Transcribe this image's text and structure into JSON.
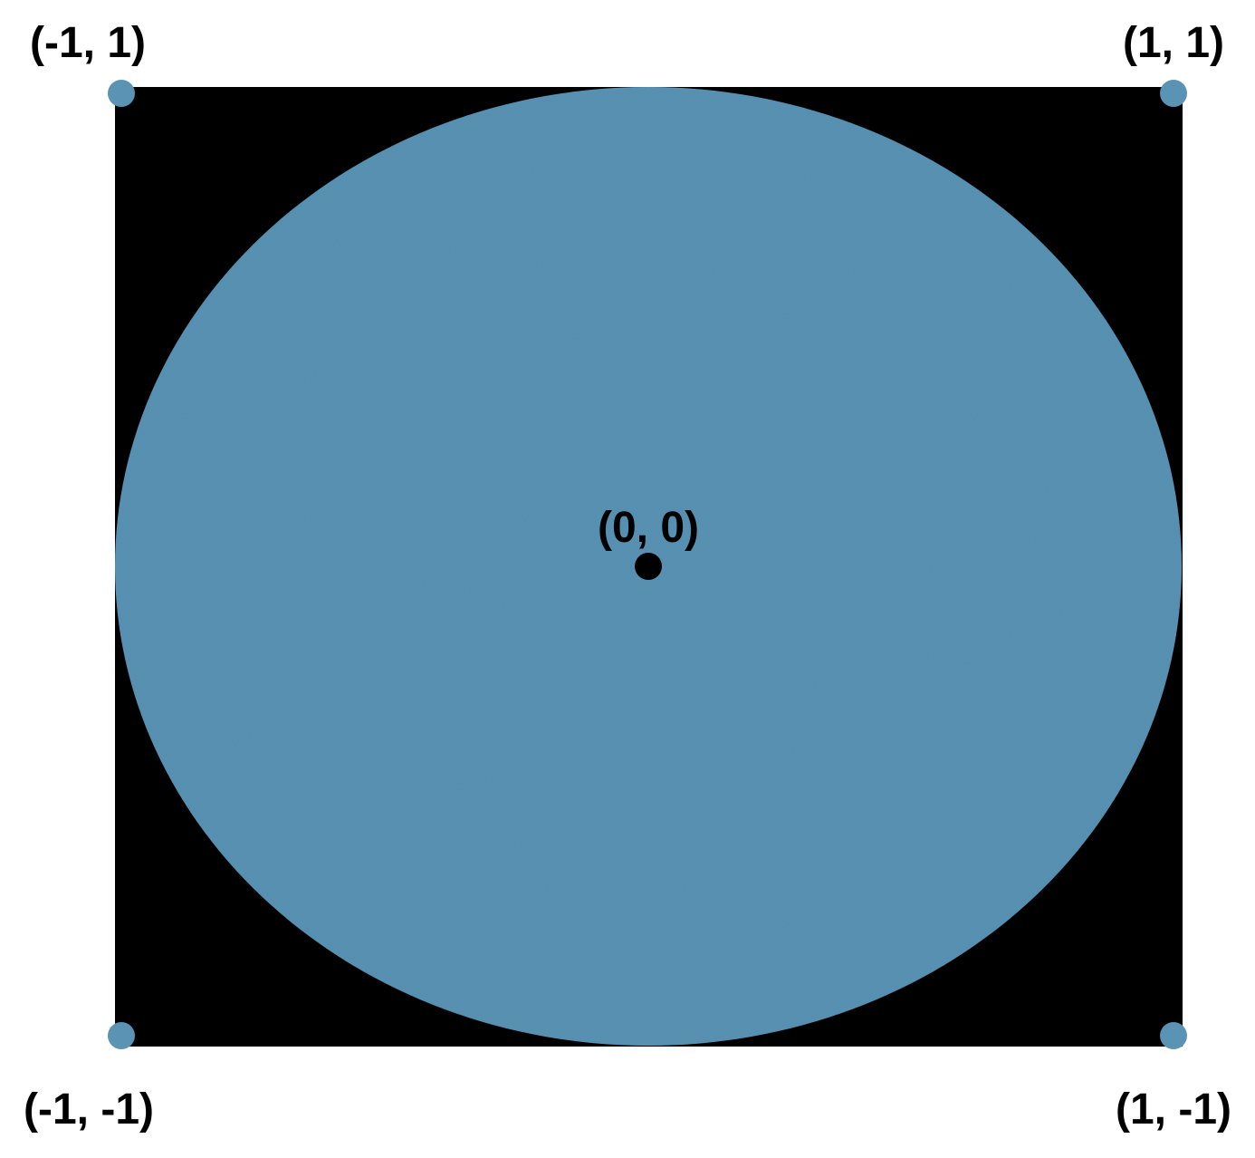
{
  "colors": {
    "background": "#ffffff",
    "square": "#000000",
    "circle": "#5a93b4",
    "corner_points": "#5a93b4",
    "center_point": "#000000",
    "text": "#000000"
  },
  "labels": {
    "top_left": "(-1, 1)",
    "top_right": "(1, 1)",
    "bottom_left": "(-1, -1)",
    "bottom_right": "(1, -1)",
    "center": "(0, 0)"
  }
}
